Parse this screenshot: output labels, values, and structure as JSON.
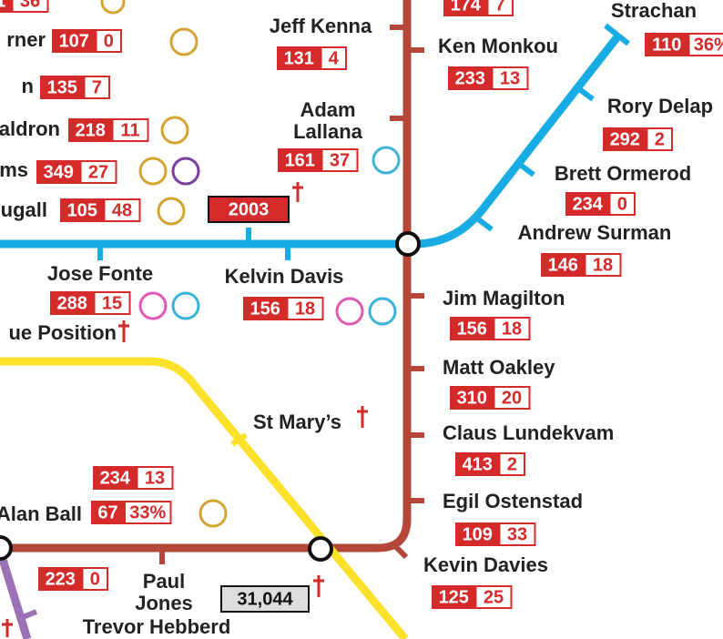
{
  "stations": [
    {
      "stats": [
        [
          1,
          36
        ]
      ]
    },
    {
      "name": [
        "rner"
      ],
      "stats": [
        [
          107,
          0
        ]
      ]
    },
    {
      "name": [
        "n"
      ],
      "stats": [
        [
          135,
          7
        ]
      ]
    },
    {
      "name": [
        "aldron"
      ],
      "stats": [
        [
          218,
          11
        ]
      ]
    },
    {
      "name": [
        "ms"
      ],
      "stats": [
        [
          349,
          27
        ]
      ]
    },
    {
      "name": [
        "ugall"
      ],
      "stats": [
        [
          105,
          48
        ]
      ]
    },
    {
      "name": [
        "Jeff Kenna"
      ],
      "stats": [
        [
          131,
          4
        ]
      ]
    },
    {
      "name": [
        "Adam",
        "Lallana"
      ],
      "stats": [
        [
          161,
          37
        ]
      ]
    },
    {
      "stats": [
        [
          174,
          7
        ]
      ]
    },
    {
      "name": [
        "Ken Monkou"
      ],
      "stats": [
        [
          233,
          13
        ]
      ]
    },
    {
      "name": [
        "Strachan"
      ],
      "stats": [
        [
          110,
          "36%"
        ]
      ]
    },
    {
      "name": [
        "Rory Delap"
      ],
      "stats": [
        [
          292,
          2
        ]
      ]
    },
    {
      "name": [
        "Brett Ormerod"
      ],
      "stats": [
        [
          234,
          0
        ]
      ]
    },
    {
      "name": [
        "Andrew Surman"
      ],
      "stats": [
        [
          146,
          18
        ]
      ]
    },
    {
      "name": [
        "Jose Fonte"
      ],
      "stats": [
        [
          288,
          15
        ]
      ]
    },
    {
      "name": [
        "Kelvin Davis"
      ],
      "stats": [
        [
          156,
          18
        ]
      ]
    },
    {
      "name": [
        "ue Position"
      ]
    },
    {
      "name": [
        "Jim Magilton"
      ],
      "stats": [
        [
          156,
          18
        ]
      ]
    },
    {
      "name": [
        "Matt Oakley"
      ],
      "stats": [
        [
          310,
          20
        ]
      ]
    },
    {
      "name": [
        "Claus Lundekvam"
      ],
      "stats": [
        [
          413,
          2
        ]
      ]
    },
    {
      "name": [
        "Egil Ostenstad"
      ],
      "stats": [
        [
          109,
          33
        ]
      ]
    },
    {
      "name": [
        "Kevin Davies"
      ],
      "stats": [
        [
          125,
          25
        ]
      ]
    },
    {
      "name": [
        "St Mary’s"
      ]
    },
    {
      "name": [
        "Alan Ball"
      ],
      "stats": [
        [
          234,
          13
        ],
        [
          67,
          "33%"
        ]
      ]
    },
    {
      "stats": [
        [
          223,
          0
        ]
      ]
    },
    {
      "name": [
        "Paul",
        "Jones"
      ]
    },
    {
      "name": [
        "Trevor Hebberd"
      ]
    }
  ],
  "year_box": "2003",
  "attendance_box": "31,044"
}
